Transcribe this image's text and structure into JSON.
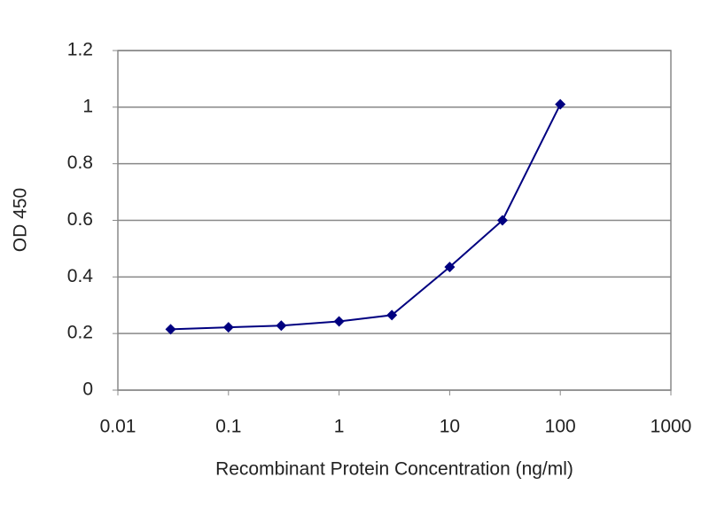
{
  "chart_data": {
    "type": "line",
    "x_label": "Recombinant Protein Concentration (ng/ml)",
    "y_label": "OD 450",
    "x": [
      0.03,
      0.1,
      0.3,
      1,
      3,
      10,
      30,
      100
    ],
    "series": [
      {
        "color": "#000080",
        "values": [
          0.215,
          0.222,
          0.228,
          0.243,
          0.265,
          0.435,
          0.6,
          1.01
        ]
      }
    ],
    "xlim": [
      0.01,
      1000
    ],
    "xticks": [
      0.01,
      0.1,
      1,
      10,
      100,
      1000
    ],
    "x_log": true,
    "ylim": [
      0,
      1.2
    ],
    "yticks": [
      0,
      0.2,
      0.4,
      0.6,
      0.8,
      1,
      1.2
    ],
    "grid": true
  }
}
